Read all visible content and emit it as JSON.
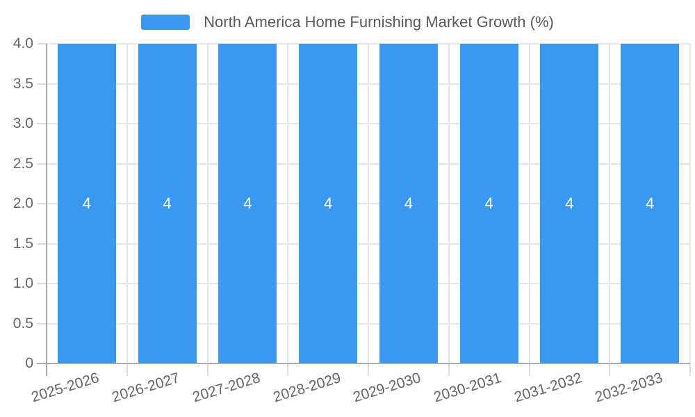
{
  "chart_data": {
    "type": "bar",
    "title": "North America Home Furnishing Market Growth (%)",
    "categories": [
      "2025-2026",
      "2026-2027",
      "2027-2028",
      "2028-2029",
      "2029-2030",
      "2030-2031",
      "2031-2032",
      "2032-2033"
    ],
    "values": [
      4,
      4,
      4,
      4,
      4,
      4,
      4,
      4
    ],
    "series": [
      {
        "name": "North America Home Furnishing Market Growth (%)",
        "values": [
          4,
          4,
          4,
          4,
          4,
          4,
          4,
          4
        ]
      }
    ],
    "bar_labels": [
      "4",
      "4",
      "4",
      "4",
      "4",
      "4",
      "4",
      "4"
    ],
    "xlabel": "",
    "ylabel": "",
    "ylim": [
      0,
      4
    ],
    "yticks": [
      0,
      0.5,
      1,
      1.5,
      2,
      2.5,
      3,
      3.5,
      4
    ],
    "ytick_labels": [
      "0",
      "0.5",
      "1.0",
      "1.5",
      "2.0",
      "2.5",
      "3.0",
      "3.5",
      "4.0"
    ],
    "grid": true,
    "legend_position": "top-center",
    "xtick_rotation_deg": -17,
    "colors": {
      "bar": "#3a99ee",
      "grid": "#e6e6e6",
      "tick": "#dcdcdc",
      "axis": "#aaaaaa",
      "axis_text": "#666666",
      "legend_text": "#595959",
      "bar_label": "#ffffff",
      "background": "#ffffff"
    }
  }
}
